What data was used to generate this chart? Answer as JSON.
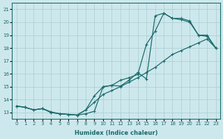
{
  "xlabel": "Humidex (Indice chaleur)",
  "xlim": [
    -0.5,
    23.5
  ],
  "ylim": [
    12.5,
    21.5
  ],
  "xticks": [
    0,
    1,
    2,
    3,
    4,
    5,
    6,
    7,
    8,
    9,
    10,
    11,
    12,
    13,
    14,
    15,
    16,
    17,
    18,
    19,
    20,
    21,
    22,
    23
  ],
  "yticks": [
    13,
    14,
    15,
    16,
    17,
    18,
    19,
    20,
    21
  ],
  "bg_color": "#cde8ed",
  "line_color": "#1a6b6b",
  "grid_color": "#aacccc",
  "line1_y": [
    13.5,
    13.4,
    13.2,
    13.3,
    13.0,
    12.9,
    12.85,
    12.8,
    12.9,
    13.1,
    15.0,
    15.1,
    15.05,
    15.5,
    16.1,
    15.6,
    20.5,
    20.7,
    20.3,
    20.3,
    20.1,
    19.0,
    18.9,
    18.0
  ],
  "line2_y": [
    13.5,
    13.4,
    13.2,
    13.3,
    13.0,
    12.9,
    12.85,
    12.8,
    13.2,
    14.3,
    15.0,
    15.1,
    15.5,
    15.7,
    15.95,
    18.3,
    19.3,
    20.7,
    20.3,
    20.2,
    20.0,
    19.0,
    19.0,
    18.0
  ],
  "line3_y": [
    13.5,
    13.4,
    13.2,
    13.3,
    13.05,
    12.9,
    12.85,
    12.8,
    13.2,
    13.8,
    14.4,
    14.7,
    15.0,
    15.35,
    15.7,
    16.1,
    16.5,
    17.0,
    17.5,
    17.8,
    18.1,
    18.4,
    18.7,
    18.0
  ]
}
